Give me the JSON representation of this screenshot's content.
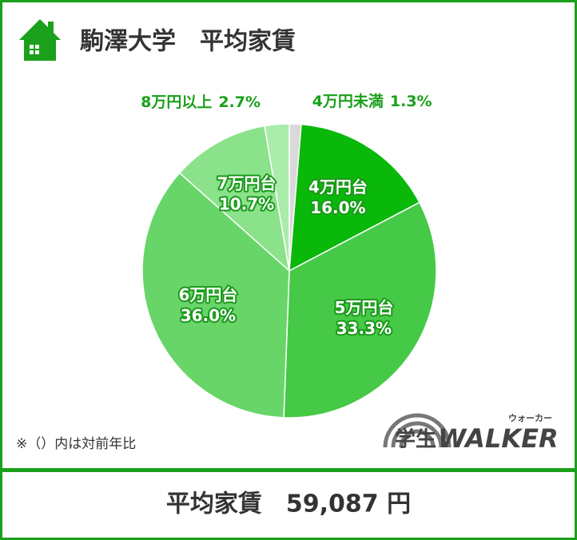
{
  "chart_data": {
    "type": "pie",
    "title": "駒澤大学　平均家賃",
    "categories": [
      "4万円未満",
      "4万円台",
      "5万円台",
      "6万円台",
      "7万円台",
      "8万円以上"
    ],
    "values": [
      1.3,
      16.0,
      33.3,
      36.0,
      10.7,
      2.7
    ],
    "value_labels": [
      "1.3%",
      "16.0%",
      "33.3%",
      "36.0%",
      "10.7%",
      "2.7%"
    ],
    "colors": [
      "#d9d9d9",
      "#0ab80a",
      "#46c946",
      "#68d568",
      "#8ae28a",
      "#aaecaa"
    ],
    "note": "※（）内は対前年比",
    "logo": {
      "main": "学生",
      "brand": "WALKER",
      "reading": "ウォーカー"
    },
    "footer": "平均家賃　59,087 円"
  }
}
